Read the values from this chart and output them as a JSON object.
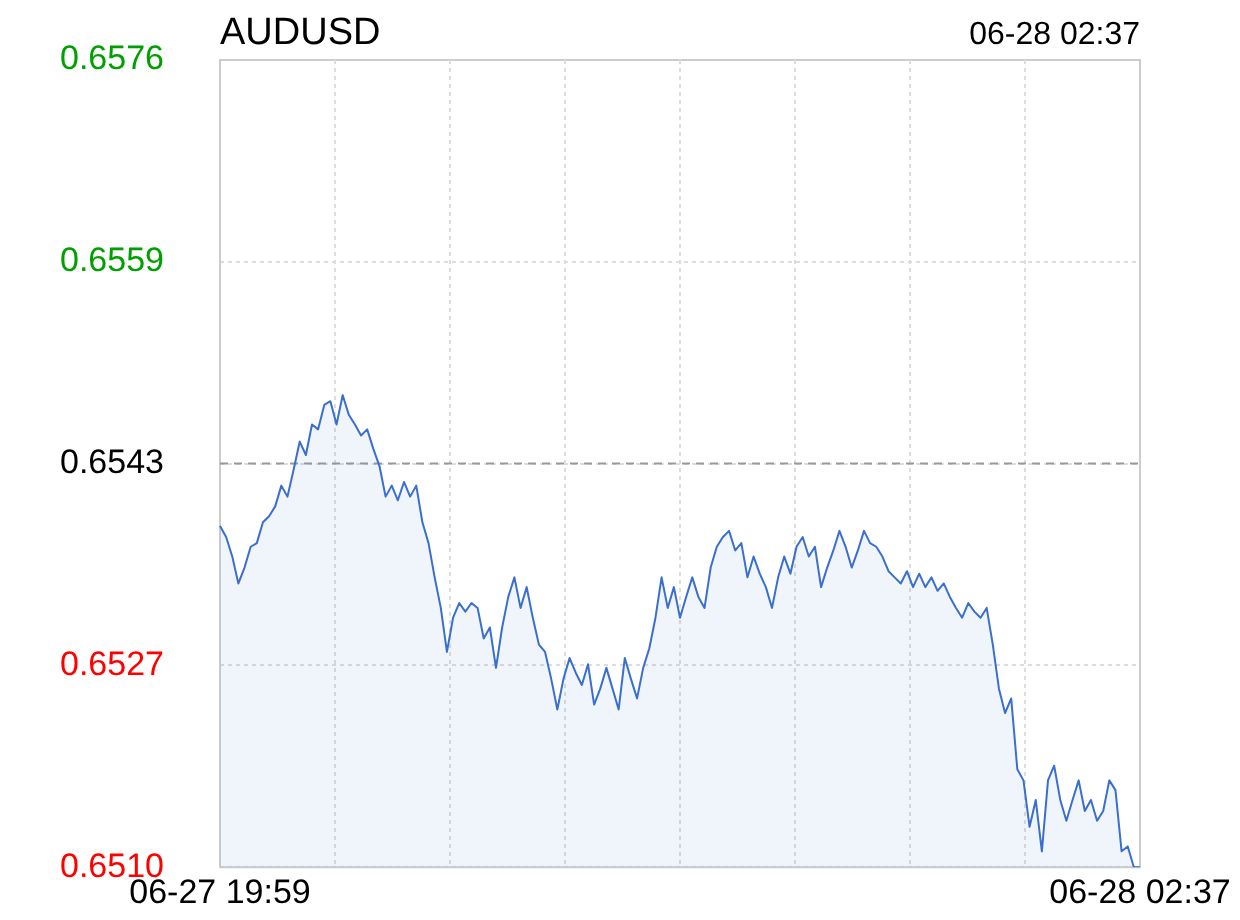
{
  "chart_data": {
    "type": "area",
    "title": "AUDUSD",
    "annotations": [
      "06-28 02:37"
    ],
    "categories": [
      "06-27 19:59",
      null,
      null,
      null,
      null,
      null,
      null,
      null,
      null,
      null,
      null,
      null,
      null,
      null,
      null,
      null,
      null,
      null,
      null,
      null,
      null,
      null,
      null,
      null,
      null,
      null,
      null,
      null,
      null,
      null,
      null,
      null,
      null,
      null,
      null,
      null,
      null,
      null,
      null,
      null,
      null,
      null,
      null,
      null,
      null,
      null,
      null,
      null,
      null,
      null,
      null,
      null,
      null,
      null,
      null,
      null,
      null,
      null,
      null,
      null,
      null,
      null,
      null,
      null,
      null,
      null,
      null,
      null,
      null,
      null,
      null,
      null,
      null,
      null,
      null,
      null,
      null,
      null,
      null,
      null,
      null,
      null,
      null,
      null,
      null,
      null,
      null,
      null,
      null,
      null,
      null,
      null,
      null,
      null,
      null,
      null,
      null,
      null,
      null,
      null,
      null,
      null,
      null,
      null,
      null,
      null,
      null,
      null,
      null,
      null,
      null,
      null,
      null,
      null,
      null,
      null,
      null,
      null,
      null,
      null,
      null,
      null,
      null,
      null,
      null,
      null,
      null,
      null,
      null,
      null,
      null,
      null,
      null,
      null,
      null,
      null,
      null,
      null,
      null,
      null,
      null,
      null,
      null,
      null,
      null,
      null,
      null,
      null,
      null,
      null,
      "06-28 02:37"
    ],
    "series": [
      {
        "color": "#3a6fcf",
        "values": [
          0.65379,
          0.6537,
          0.65354,
          0.65332,
          0.65345,
          0.65362,
          0.65365,
          0.65382,
          0.65387,
          0.65395,
          0.65412,
          0.65403,
          0.65425,
          0.65448,
          0.65437,
          0.65462,
          0.65458,
          0.65478,
          0.65481,
          0.65462,
          0.65486,
          0.6547,
          0.65462,
          0.65453,
          0.65458,
          0.65442,
          0.65428,
          0.65403,
          0.65412,
          0.654,
          0.65415,
          0.65403,
          0.65412,
          0.65382,
          0.65365,
          0.65337,
          0.65312,
          0.65276,
          0.65304,
          0.65316,
          0.65309,
          0.65316,
          0.65312,
          0.65287,
          0.65296,
          0.65263,
          0.65296,
          0.65321,
          0.65337,
          0.65312,
          0.65329,
          0.65304,
          0.65282,
          0.65276,
          0.65254,
          0.65229,
          0.65254,
          0.65271,
          0.65259,
          0.65249,
          0.65266,
          0.65233,
          0.65246,
          0.65263,
          0.65246,
          0.65229,
          0.65271,
          0.65254,
          0.65238,
          0.65263,
          0.65279,
          0.65304,
          0.65337,
          0.65312,
          0.65329,
          0.65304,
          0.65321,
          0.65337,
          0.65321,
          0.65312,
          0.65345,
          0.65362,
          0.6537,
          0.65375,
          0.65359,
          0.65365,
          0.65337,
          0.65354,
          0.6534,
          0.65329,
          0.65312,
          0.65337,
          0.65354,
          0.6534,
          0.65362,
          0.6537,
          0.65354,
          0.65362,
          0.65329,
          0.65345,
          0.65359,
          0.65375,
          0.65362,
          0.65345,
          0.65359,
          0.65375,
          0.65365,
          0.65362,
          0.65354,
          0.65342,
          0.65337,
          0.65332,
          0.65342,
          0.65329,
          0.6534,
          0.65329,
          0.65337,
          0.65326,
          0.65332,
          0.65321,
          0.65312,
          0.65304,
          0.65316,
          0.65309,
          0.65304,
          0.65312,
          0.65282,
          0.65246,
          0.65226,
          0.65238,
          0.6518,
          0.65171,
          0.65133,
          0.65155,
          0.65113,
          0.65171,
          0.65183,
          0.65155,
          0.65138,
          0.65155,
          0.65171,
          0.65146,
          0.65155,
          0.65138,
          0.65146,
          0.65171,
          0.65163,
          0.65113,
          0.65117,
          0.651,
          0.651
        ]
      }
    ],
    "ylim": [
      0.651,
      0.6576
    ],
    "yticks": [
      {
        "value": 0.651,
        "label": "0.6510"
      },
      {
        "value": 0.65265,
        "label": "0.6527"
      },
      0.6543,
      {
        "value": 0.65595,
        "label": "0.6559"
      },
      0.6576
    ],
    "ref_lines": [
      {
        "axis": "y",
        "value": 0.6543,
        "color": "#999999",
        "line_style": "dashed"
      }
    ],
    "grid": true,
    "marker": "none",
    "line_style": "solid"
  }
}
